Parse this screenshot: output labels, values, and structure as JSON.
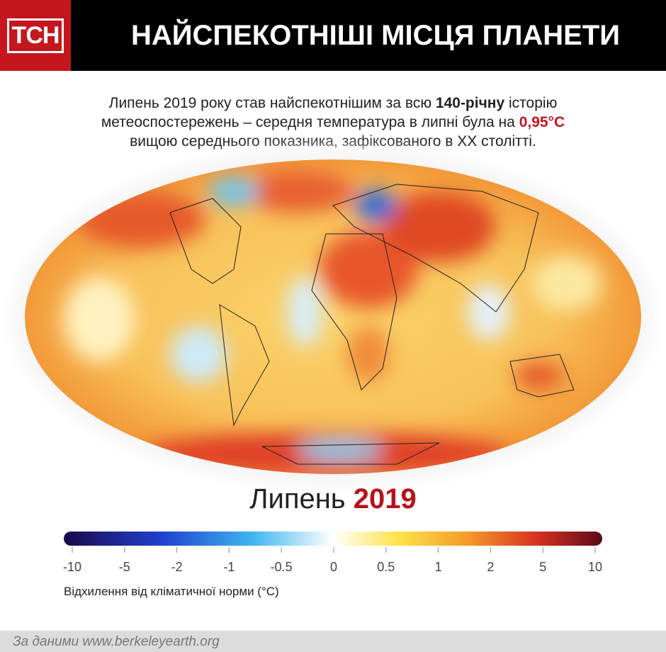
{
  "header": {
    "logo": "ТСН",
    "title": "НАЙСПЕКОТНІШІ МІСЦЯ ПЛАНЕТИ"
  },
  "intro": [
    "Липень 2019 року став найспекотнішим за всю ",
    "140-річну",
    " історію",
    "метеоспостережень – середня температура в липні була на ",
    "0,95°C",
    "вищою середнього показника, зафіксованого в XX столітті."
  ],
  "map_label": {
    "month": "Липень",
    "year": "2019"
  },
  "legend": {
    "ticks": [
      -10,
      -5,
      -2,
      -1,
      -0.5,
      0,
      0.5,
      1,
      2,
      5,
      10
    ],
    "caption": "Відхилення від кліматичної норми (°C)"
  },
  "footer": {
    "source": "За даними www.berkeleyearth.org"
  }
}
